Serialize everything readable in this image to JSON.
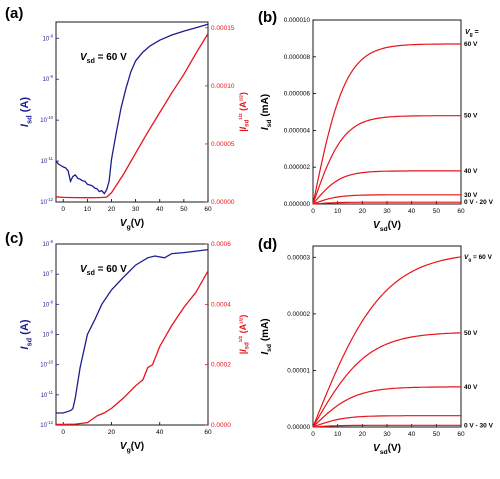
{
  "colors": {
    "blue": "#1d1d8f",
    "red": "#e8141a",
    "axis": "#000000"
  },
  "chart_data": [
    {
      "panel_label": "(a)",
      "type": "line",
      "annotation": "V_sd = 60 V",
      "xlabel": {
        "main": "V",
        "sub": "g",
        "tail": "(V)"
      },
      "x_ticks": [
        0,
        10,
        20,
        30,
        40,
        50,
        60
      ],
      "xlim": [
        -3,
        60
      ],
      "y_left": {
        "label": {
          "main": "I",
          "sub": "sd",
          "tail": " (A)"
        },
        "scale": "log",
        "ticks": [
          {
            "value": 1e-12,
            "base": "10",
            "exp": "-12"
          },
          {
            "value": 1e-11,
            "base": "10",
            "exp": "-11"
          },
          {
            "value": 1e-10,
            "base": "10",
            "exp": "-10"
          },
          {
            "value": 1e-09,
            "base": "10",
            "exp": "-9"
          },
          {
            "value": 1e-08,
            "base": "10",
            "exp": "-8"
          }
        ],
        "lim": [
          1e-12,
          2.5e-08
        ]
      },
      "y_right": {
        "label": {
          "main": "|I",
          "sub": "sd",
          "sup": "1/2",
          "tail": " (A",
          "tail_sup": "1/2",
          "close": ")"
        },
        "scale": "linear",
        "ticks": [
          "0.00000",
          "0.00005",
          "0.00010",
          "0.00015"
        ],
        "tick_values": [
          0,
          5e-05,
          0.0001,
          0.00015
        ],
        "lim": [
          0,
          0.000155
        ]
      },
      "series": [
        {
          "color": "#1d1d8f",
          "axis": "left",
          "x": [
            -3,
            -2,
            -1,
            0,
            1,
            2,
            3,
            4,
            5,
            6,
            7,
            8,
            9,
            10,
            11,
            12,
            13,
            14,
            15,
            16,
            17,
            18,
            19,
            20,
            22,
            24,
            26,
            28,
            30,
            33,
            36,
            40,
            45,
            50,
            55,
            60
          ],
          "y": [
            1e-11,
            8.5e-12,
            7.8e-12,
            7.2e-12,
            6.8e-12,
            5.8e-12,
            3.2e-12,
            4.2e-12,
            4.6e-12,
            3.8e-12,
            3.6e-12,
            3.3e-12,
            3.2e-12,
            2.7e-12,
            2.6e-12,
            2.5e-12,
            2.2e-12,
            2.1e-12,
            1.8e-12,
            1.9e-12,
            1.6e-12,
            2e-12,
            3.2e-12,
            1.1e-11,
            5e-11,
            2e-10,
            6e-10,
            1.5e-09,
            2.8e-09,
            4.6e-09,
            6.5e-09,
            9e-09,
            1.2e-08,
            1.5e-08,
            1.8e-08,
            2.2e-08
          ]
        },
        {
          "color": "#e8141a",
          "axis": "right",
          "x": [
            -3,
            0,
            5,
            10,
            15,
            18,
            20,
            25,
            30,
            35,
            40,
            45,
            50,
            55,
            60
          ],
          "y": [
            4.5e-06,
            4e-06,
            3.8e-06,
            3.7e-06,
            3.8e-06,
            4.2e-06,
            8e-06,
            2.4e-05,
            4.2e-05,
            6e-05,
            7.7e-05,
            9.4e-05,
            0.00011,
            0.000128,
            0.000145
          ]
        }
      ]
    },
    {
      "panel_label": "(b)",
      "type": "line",
      "xlabel": {
        "main": "V",
        "sub": "sd",
        "tail": "(V)"
      },
      "ylabel": {
        "main": "I",
        "sub": "sd",
        "tail": " (mA)"
      },
      "x_ticks": [
        0,
        10,
        20,
        30,
        40,
        50,
        60
      ],
      "xlim": [
        0,
        60
      ],
      "y_ticks": [
        "0.000000",
        "0.000002",
        "0.000004",
        "0.000006",
        "0.000008",
        "0.000010"
      ],
      "y_tick_values": [
        0,
        2e-06,
        4e-06,
        6e-06,
        8e-06,
        1e-05
      ],
      "ylim": [
        0,
        1e-05
      ],
      "legend_header": {
        "main": "V",
        "sub": "g",
        "tail": " ="
      },
      "series": [
        {
          "name": "60 V",
          "ysat": 8.7e-06,
          "k": 0.075
        },
        {
          "name": "50 V",
          "ysat": 4.8e-06,
          "k": 0.08
        },
        {
          "name": "40 V",
          "ysat": 1.8e-06,
          "k": 0.09
        },
        {
          "name": "30 V",
          "ysat": 5e-07,
          "k": 0.1
        },
        {
          "name": "0 V - 20 V",
          "ysat": 1e-07,
          "k": 0.1
        }
      ]
    },
    {
      "panel_label": "(c)",
      "type": "line",
      "annotation": "V_sd = 60 V",
      "xlabel": {
        "main": "V",
        "sub": "g",
        "tail": "(V)"
      },
      "x_ticks": [
        0,
        20,
        40,
        60
      ],
      "xlim": [
        -3,
        60
      ],
      "y_left": {
        "label": {
          "main": "I",
          "sub": "sd",
          "tail": " (A)"
        },
        "scale": "log",
        "ticks": [
          {
            "value": 1e-12,
            "base": "10",
            "exp": "-12"
          },
          {
            "value": 1e-11,
            "base": "10",
            "exp": "-11"
          },
          {
            "value": 1e-10,
            "base": "10",
            "exp": "-10"
          },
          {
            "value": 1e-09,
            "base": "10",
            "exp": "-9"
          },
          {
            "value": 1e-08,
            "base": "10",
            "exp": "-8"
          },
          {
            "value": 1e-07,
            "base": "10",
            "exp": "-7"
          },
          {
            "value": 1e-06,
            "base": "10",
            "exp": "-6"
          }
        ],
        "lim": [
          1e-12,
          1e-06
        ]
      },
      "y_right": {
        "label": {
          "main": "|I",
          "sub": "sd",
          "sup": "1/2",
          "tail": " (A",
          "tail_sup": "1/2",
          "close": ")"
        },
        "scale": "linear",
        "ticks": [
          "0.0000",
          "0.0002",
          "0.0004",
          "0.0006"
        ],
        "tick_values": [
          0,
          0.0002,
          0.0004,
          0.0006
        ],
        "lim": [
          0,
          0.0006
        ]
      },
      "series": [
        {
          "color": "#1d1d8f",
          "axis": "left",
          "x": [
            -3,
            0,
            3,
            4,
            5,
            7,
            10,
            13,
            16,
            20,
            25,
            30,
            35,
            38,
            42,
            45,
            50,
            55,
            60
          ],
          "y": [
            2.5e-12,
            2.5e-12,
            3e-12,
            3.5e-12,
            8e-12,
            8e-11,
            1e-09,
            3e-09,
            1e-08,
            3e-08,
            8e-08,
            2e-07,
            3.5e-07,
            4e-07,
            3.5e-07,
            4.8e-07,
            5.2e-07,
            5.8e-07,
            6.5e-07
          ]
        },
        {
          "color": "#e8141a",
          "axis": "right",
          "x": [
            -3,
            0,
            5,
            10,
            14,
            17,
            20,
            25,
            30,
            33,
            35,
            37,
            40,
            45,
            50,
            55,
            60
          ],
          "y": [
            2e-06,
            2e-06,
            3e-06,
            8e-06,
            3e-05,
            4e-05,
            5.5e-05,
            9e-05,
            0.00013,
            0.00015,
            0.00019,
            0.0002,
            0.00026,
            0.00033,
            0.00039,
            0.00044,
            0.00051
          ]
        }
      ]
    },
    {
      "panel_label": "(d)",
      "type": "line",
      "xlabel": {
        "main": "V",
        "sub": "sd",
        "tail": "(V)"
      },
      "ylabel": {
        "main": "I",
        "sub": "sd",
        "tail": " (mA)"
      },
      "x_ticks": [
        0,
        10,
        20,
        30,
        40,
        50,
        60
      ],
      "xlim": [
        0,
        60
      ],
      "y_ticks": [
        "0.00000",
        "0.00001",
        "0.00002",
        "0.00003"
      ],
      "y_tick_values": [
        0,
        1e-05,
        2e-05,
        3e-05
      ],
      "ylim": [
        0,
        3.2e-05
      ],
      "series": [
        {
          "name": "V_g = 60 V",
          "label": {
            "main": "V",
            "sub": "g",
            "tail": " = 60 V"
          },
          "ysat": 3.1e-05,
          "k": 0.035
        },
        {
          "name": "50 V",
          "ysat": 1.68e-05,
          "k": 0.045
        },
        {
          "name": "40 V",
          "ysat": 7.1e-06,
          "k": 0.06
        },
        {
          "name": "",
          "ysat": 2e-06,
          "k": 0.08
        },
        {
          "name": "0 V - 30 V",
          "ysat": 3e-07,
          "k": 0.1
        }
      ]
    }
  ]
}
